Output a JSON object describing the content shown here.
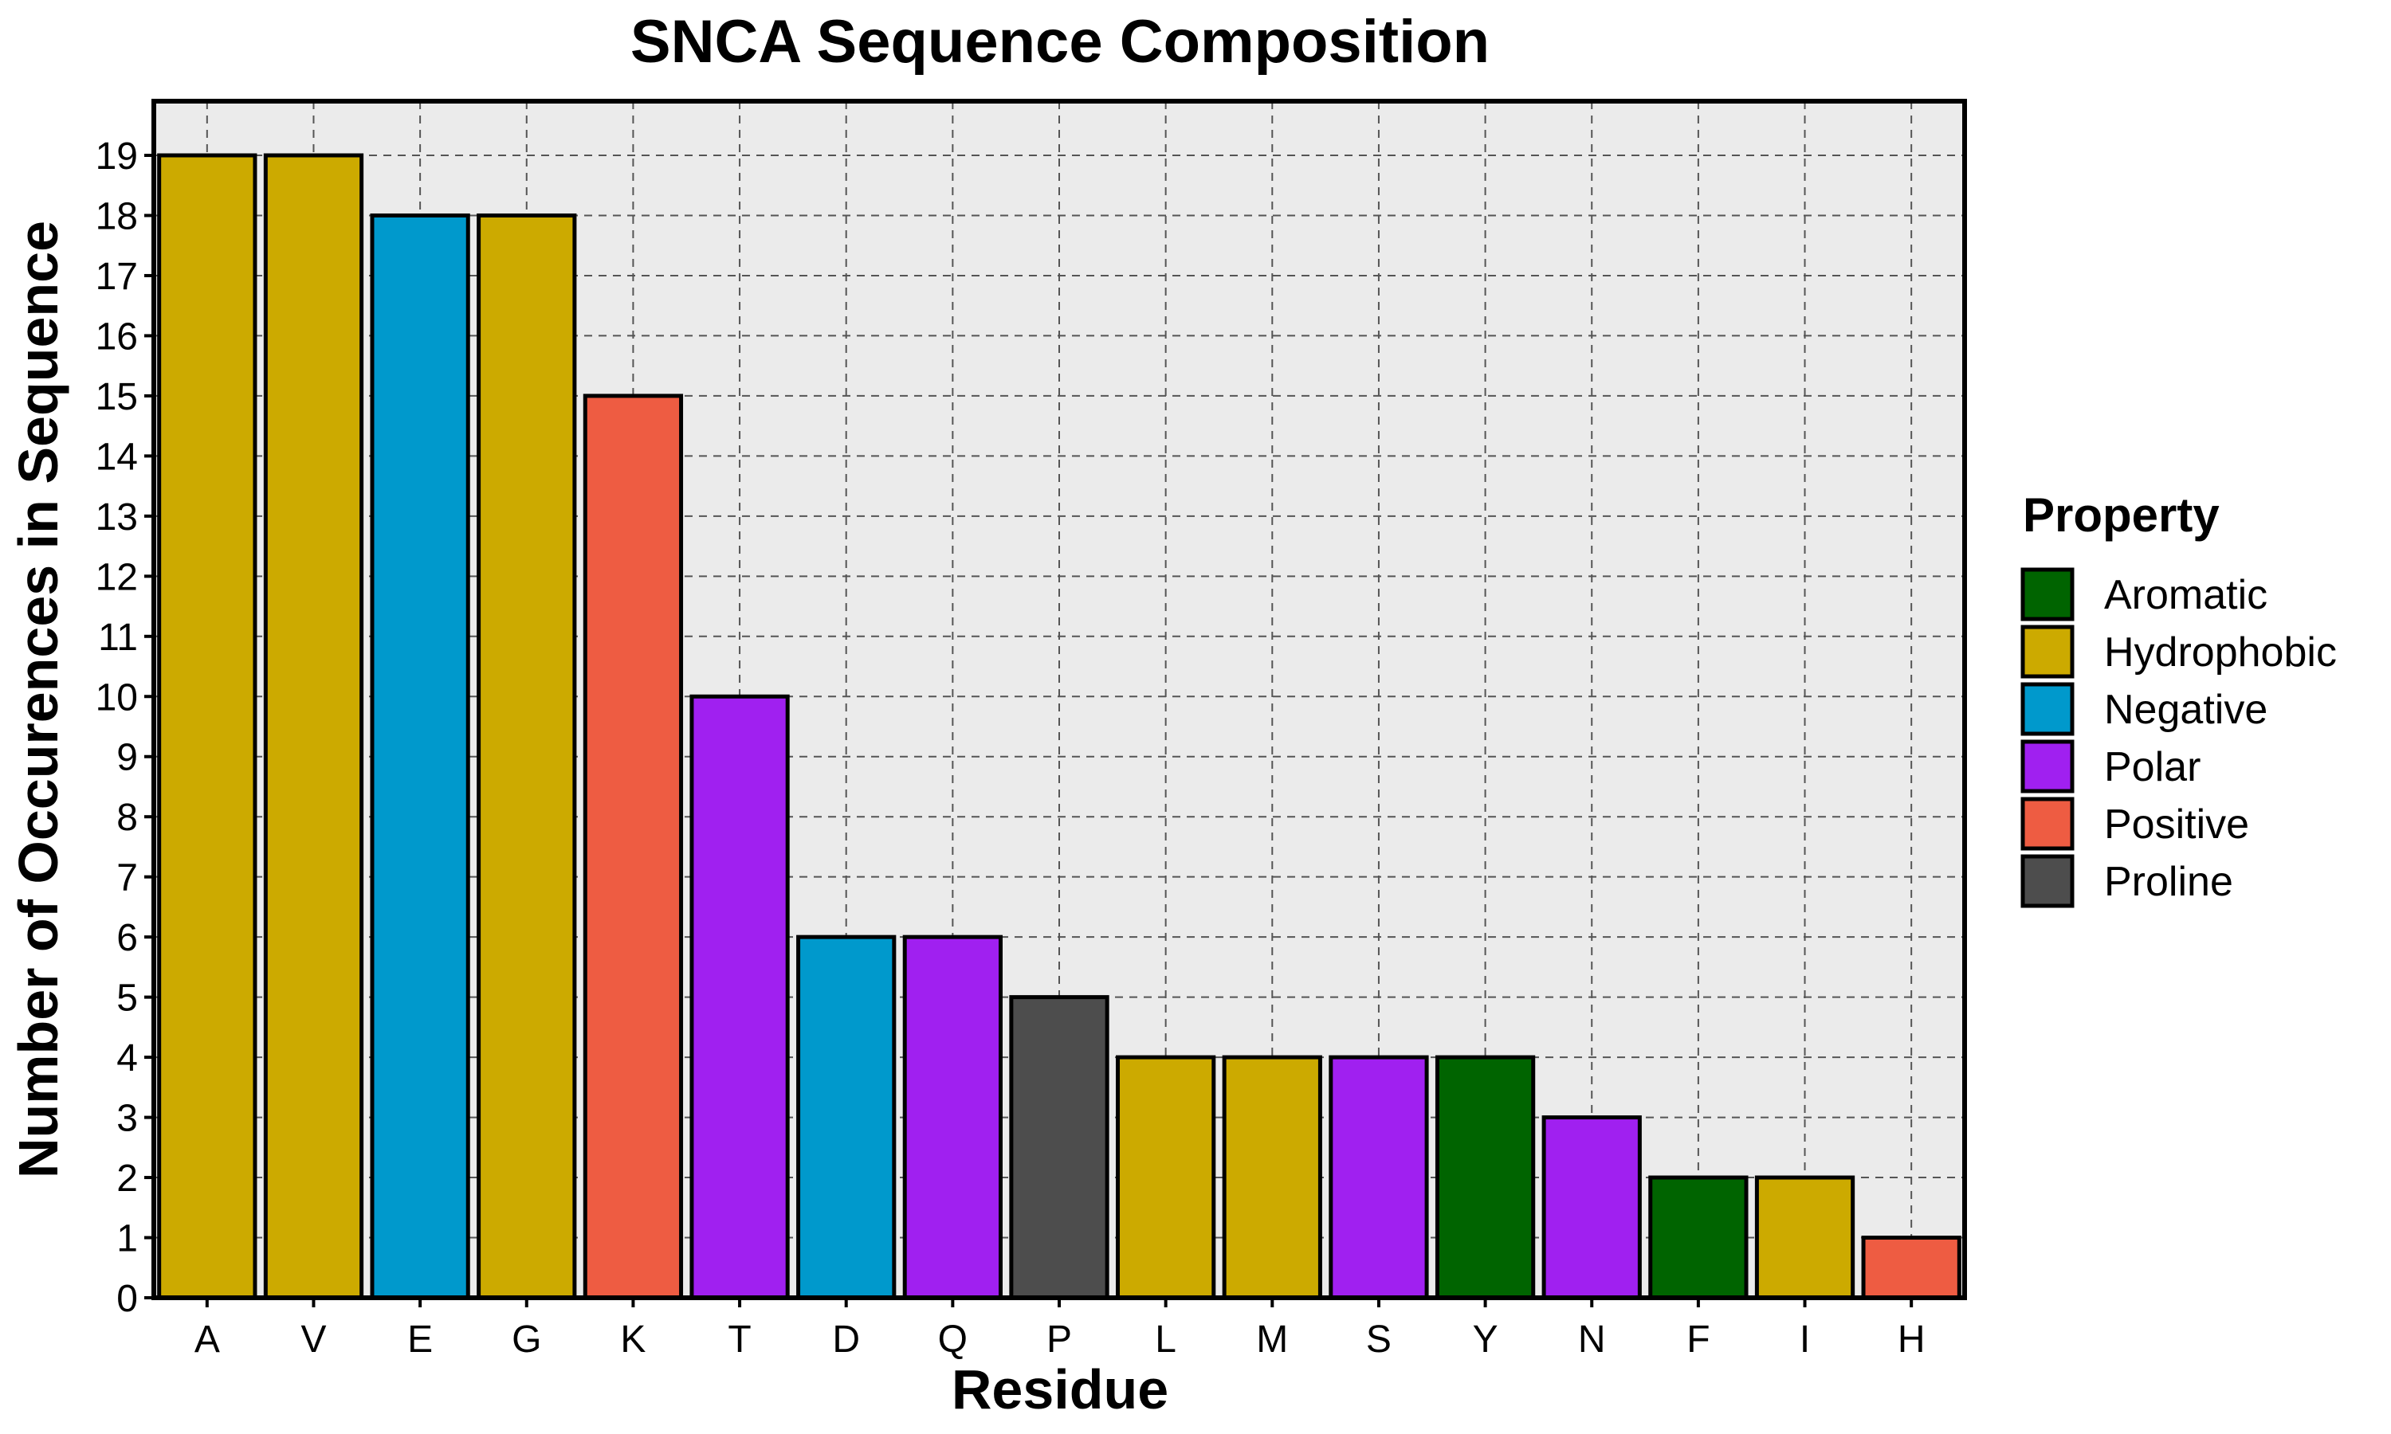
{
  "chart_data": {
    "type": "bar",
    "title": "SNCA Sequence Composition",
    "xlabel": "Residue",
    "ylabel": "Number of Occurences in Sequence",
    "categories": [
      "A",
      "V",
      "E",
      "G",
      "K",
      "T",
      "D",
      "Q",
      "P",
      "L",
      "M",
      "S",
      "Y",
      "N",
      "F",
      "I",
      "H"
    ],
    "values": [
      19,
      19,
      18,
      18,
      15,
      10,
      6,
      6,
      5,
      4,
      4,
      4,
      4,
      3,
      2,
      2,
      1
    ],
    "property": [
      "Hydrophobic",
      "Hydrophobic",
      "Negative",
      "Hydrophobic",
      "Positive",
      "Polar",
      "Negative",
      "Polar",
      "Proline",
      "Hydrophobic",
      "Hydrophobic",
      "Polar",
      "Aromatic",
      "Polar",
      "Aromatic",
      "Hydrophobic",
      "Positive"
    ],
    "ylim": [
      0,
      19
    ],
    "yticks": [
      0,
      1,
      2,
      3,
      4,
      5,
      6,
      7,
      8,
      9,
      10,
      11,
      12,
      13,
      14,
      15,
      16,
      17,
      18,
      19
    ],
    "grid": true,
    "legend": {
      "title": "Property",
      "placement": "right",
      "entries": [
        {
          "name": "Aromatic",
          "color": "#006400"
        },
        {
          "name": "Hydrophobic",
          "color": "#CCAA00"
        },
        {
          "name": "Negative",
          "color": "#0099CC"
        },
        {
          "name": "Polar",
          "color": "#A020F0"
        },
        {
          "name": "Positive",
          "color": "#EE5C42"
        },
        {
          "name": "Proline",
          "color": "#4D4D4D"
        }
      ]
    },
    "panel_background": "#EBEBEB"
  }
}
